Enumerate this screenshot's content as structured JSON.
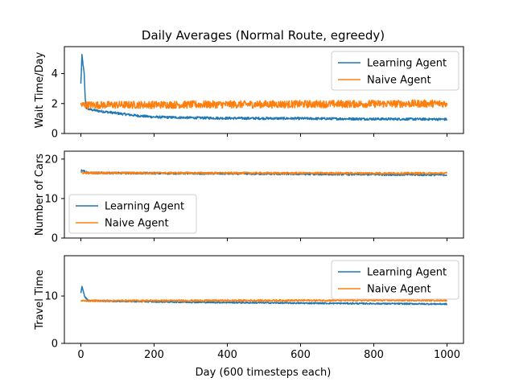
{
  "title": "Daily Averages (Normal Route, egreedy)",
  "xlabel": "Day (600 timesteps each)",
  "x_range": [
    0,
    1000
  ],
  "xlim": [
    -45,
    1045
  ],
  "xticks": [
    0,
    200,
    400,
    600,
    800,
    1000
  ],
  "colors": {
    "learning": "#1f77b4",
    "naive": "#ff7f0e"
  },
  "chart_data": [
    {
      "type": "line",
      "ylabel": "Wait Time/Day",
      "ylim": [
        0,
        5.8
      ],
      "yticks": [
        0,
        2,
        4
      ],
      "legend": "top-right",
      "series": [
        {
          "name": "Learning Agent",
          "color": "#1f77b4",
          "points": [
            [
              0,
              3.3
            ],
            [
              3,
              5.2
            ],
            [
              6,
              4.6
            ],
            [
              9,
              4.0
            ],
            [
              12,
              2.3
            ],
            [
              15,
              1.7
            ],
            [
              25,
              1.6
            ],
            [
              50,
              1.5
            ],
            [
              100,
              1.35
            ],
            [
              150,
              1.2
            ],
            [
              200,
              1.1
            ],
            [
              300,
              1.05
            ],
            [
              400,
              1.02
            ],
            [
              600,
              1.0
            ],
            [
              800,
              0.97
            ],
            [
              1000,
              0.95
            ]
          ],
          "noise": 0.08
        },
        {
          "name": "Naive Agent",
          "color": "#ff7f0e",
          "points": [
            [
              0,
              1.9
            ],
            [
              1000,
              2.0
            ]
          ],
          "noise": 0.25
        }
      ]
    },
    {
      "type": "line",
      "ylabel": "Number of Cars",
      "ylim": [
        0,
        22
      ],
      "yticks": [
        0,
        10,
        20
      ],
      "legend": "lower-left",
      "series": [
        {
          "name": "Learning Agent",
          "color": "#1f77b4",
          "points": [
            [
              0,
              17.0
            ],
            [
              5,
              17.2
            ],
            [
              20,
              16.5
            ],
            [
              1000,
              16.0
            ]
          ],
          "noise": 0.25
        },
        {
          "name": "Naive Agent",
          "color": "#ff7f0e",
          "points": [
            [
              0,
              16.5
            ],
            [
              1000,
              16.4
            ]
          ],
          "noise": 0.25
        }
      ]
    },
    {
      "type": "line",
      "ylabel": "Travel Time",
      "ylim": [
        0,
        18.5
      ],
      "yticks": [
        0,
        10
      ],
      "legend": "top-right",
      "series": [
        {
          "name": "Learning Agent",
          "color": "#1f77b4",
          "points": [
            [
              0,
              10.5
            ],
            [
              3,
              12.0
            ],
            [
              6,
              11.3
            ],
            [
              10,
              10.0
            ],
            [
              20,
              9.0
            ],
            [
              100,
              8.9
            ],
            [
              300,
              8.7
            ],
            [
              600,
              8.5
            ],
            [
              1000,
              8.3
            ]
          ],
          "noise": 0.15
        },
        {
          "name": "Naive Agent",
          "color": "#ff7f0e",
          "points": [
            [
              0,
              9.0
            ],
            [
              1000,
              9.1
            ]
          ],
          "noise": 0.18
        }
      ]
    }
  ]
}
